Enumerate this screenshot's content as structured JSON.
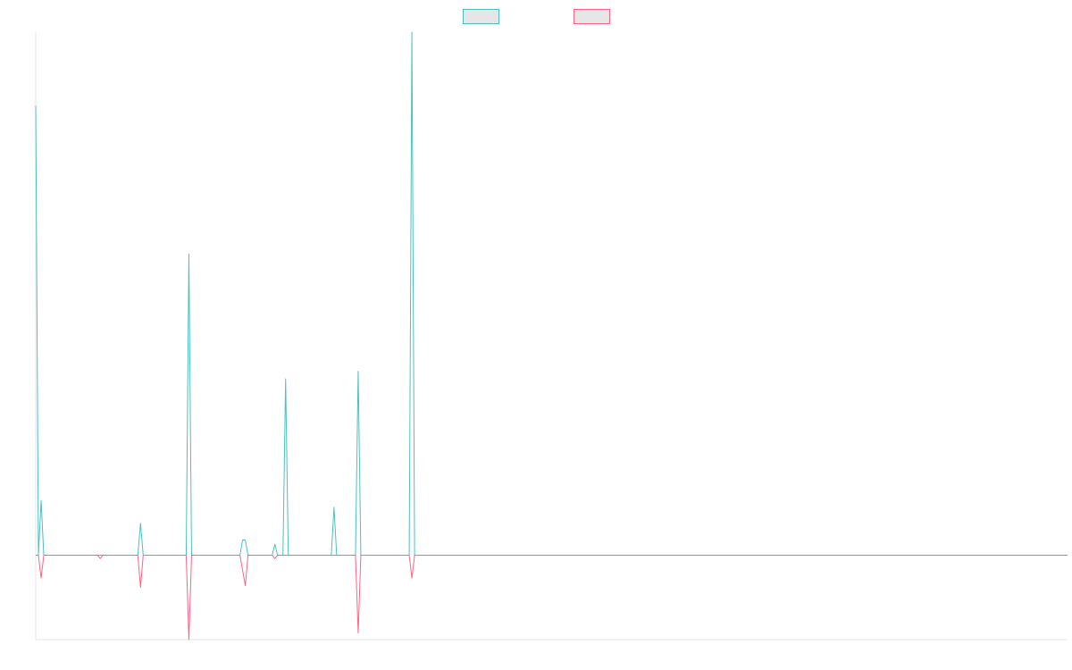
{
  "chart_data": {
    "type": "line",
    "title": "",
    "xlabel": "",
    "ylabel": "",
    "legend_placement": "top-center",
    "grid": false,
    "x": [
      0,
      1,
      2,
      3,
      4,
      5,
      6,
      7,
      8,
      9,
      10,
      11,
      12,
      13,
      14,
      15,
      16,
      17,
      18,
      19,
      20,
      21,
      22,
      23,
      24,
      25,
      26,
      27,
      28,
      29,
      30,
      31,
      32,
      33,
      34,
      35,
      36,
      37,
      38,
      39,
      40,
      41,
      42,
      43,
      44,
      45,
      46,
      47,
      48,
      49,
      50,
      51,
      52,
      53,
      54,
      55,
      56,
      57,
      58,
      59,
      60,
      61,
      62,
      63,
      64,
      65,
      66,
      67,
      68,
      69,
      70,
      71,
      72,
      73,
      74,
      75,
      76,
      77,
      78,
      79,
      80,
      81,
      82,
      83,
      84,
      85,
      86,
      87,
      88,
      89,
      90,
      91,
      92,
      93,
      94,
      95,
      96,
      97,
      98,
      99,
      100,
      101,
      102,
      103,
      104,
      105,
      106,
      107,
      108,
      109,
      110,
      111,
      112,
      113,
      114,
      115,
      116,
      117,
      118,
      119,
      120,
      121,
      122,
      123,
      124,
      125,
      126,
      127,
      128,
      129,
      130,
      131,
      132,
      133,
      134,
      135,
      136,
      137,
      138,
      139,
      140,
      141,
      142,
      143,
      144,
      145,
      146,
      147,
      148,
      149,
      150,
      151,
      152,
      153,
      154,
      155,
      156,
      157,
      158,
      159,
      160,
      161,
      162,
      163,
      164,
      165,
      166,
      167,
      168,
      169,
      170,
      171,
      172,
      173,
      174,
      175,
      176,
      177,
      178,
      179,
      180,
      181,
      182,
      183,
      184,
      185,
      186,
      187,
      188,
      189,
      190,
      191,
      192,
      193,
      194,
      195,
      196,
      197,
      198,
      199,
      200,
      201,
      202,
      203,
      204,
      205,
      206,
      207,
      208,
      209,
      210,
      211,
      212,
      213,
      214,
      215,
      216,
      217,
      218,
      219,
      220,
      221,
      222,
      223,
      224,
      225,
      226,
      227,
      228,
      229,
      230,
      231,
      232,
      233,
      234,
      235,
      236,
      237,
      238,
      239,
      240,
      241,
      242,
      243,
      244,
      245,
      246,
      247,
      248,
      249,
      250,
      251,
      252,
      253,
      254,
      255,
      256,
      257,
      258,
      259,
      260,
      261,
      262,
      263,
      264,
      265,
      266,
      267,
      268,
      269,
      270,
      271,
      272,
      273,
      274,
      275,
      276,
      277,
      278,
      279,
      280,
      281,
      282,
      283,
      284,
      285,
      286,
      287,
      288,
      289,
      290,
      291,
      292,
      293,
      294,
      295,
      296,
      297,
      298,
      299,
      300,
      301,
      302,
      303,
      304,
      305,
      306,
      307,
      308,
      309,
      310,
      311,
      312,
      313,
      314,
      315,
      316,
      317,
      318,
      319,
      320,
      321,
      322,
      323,
      324,
      325,
      326,
      327,
      328,
      329,
      330,
      331,
      332,
      333,
      334,
      335,
      336,
      337,
      338,
      339,
      340,
      341,
      342,
      343,
      344,
      345,
      346,
      347,
      348,
      349,
      350,
      351,
      352,
      353,
      354,
      355,
      356,
      357,
      358,
      359,
      360,
      361,
      362,
      363,
      364,
      365,
      366,
      367,
      368,
      369,
      370,
      371,
      372,
      373,
      374,
      375,
      376,
      377,
      378,
      379,
      380,
      381,
      382,
      383,
      384
    ],
    "ylim": [
      -10,
      62
    ],
    "series": [
      {
        "name": "",
        "color": "#4bc0c0",
        "baseline": 0,
        "points": [
          [
            0,
            53.3
          ],
          [
            1,
            0
          ],
          [
            2,
            6.5
          ],
          [
            3,
            0
          ],
          [
            23,
            0
          ],
          [
            24,
            0
          ],
          [
            38,
            0
          ],
          [
            39,
            3.8
          ],
          [
            40,
            0
          ],
          [
            56,
            0
          ],
          [
            57,
            35.7
          ],
          [
            58,
            0
          ],
          [
            76,
            0
          ],
          [
            77,
            1.8
          ],
          [
            78,
            1.8
          ],
          [
            79,
            0
          ],
          [
            88,
            0
          ],
          [
            89,
            1.3
          ],
          [
            90,
            0
          ],
          [
            92,
            0
          ],
          [
            93,
            20.9
          ],
          [
            94,
            0
          ],
          [
            110,
            0
          ],
          [
            111,
            5.7
          ],
          [
            112,
            0
          ],
          [
            119,
            0
          ],
          [
            120,
            21.8
          ],
          [
            121,
            0
          ],
          [
            139,
            0
          ],
          [
            140,
            62
          ],
          [
            141,
            0
          ],
          [
            384,
            0
          ]
        ]
      },
      {
        "name": "",
        "color": "#ff6384",
        "baseline": 0,
        "points": [
          [
            0,
            0
          ],
          [
            1,
            0
          ],
          [
            2,
            -2.7
          ],
          [
            3,
            0
          ],
          [
            23,
            0
          ],
          [
            24,
            -0.4
          ],
          [
            25,
            0
          ],
          [
            38,
            0
          ],
          [
            39,
            -3.8
          ],
          [
            40,
            0
          ],
          [
            56,
            0
          ],
          [
            57,
            -10
          ],
          [
            58,
            0
          ],
          [
            76,
            0
          ],
          [
            78,
            -3.6
          ],
          [
            79,
            0
          ],
          [
            88,
            0
          ],
          [
            89,
            -0.4
          ],
          [
            90,
            0
          ],
          [
            119,
            0
          ],
          [
            120,
            -9.2
          ],
          [
            121,
            0
          ],
          [
            139,
            0
          ],
          [
            140,
            -2.7
          ],
          [
            141,
            0
          ],
          [
            384,
            0
          ]
        ]
      }
    ]
  }
}
